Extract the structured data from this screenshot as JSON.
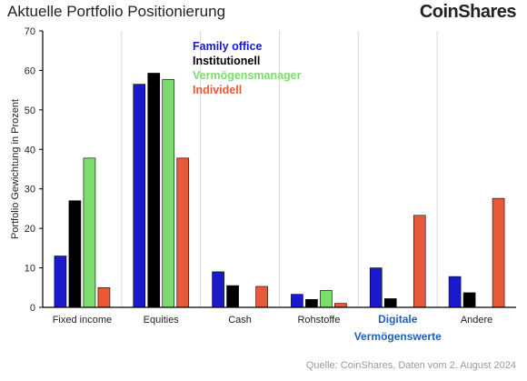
{
  "title": "Aktuelle Portfolio Positionierung",
  "brand": "CoinShares",
  "source": "Quelle: CoinShares, Daten vom 2. August 2024",
  "chart_data": {
    "type": "bar",
    "title": "Aktuelle Portfolio Positionierung",
    "ylabel": "Portfolio Gewichtung in Prozent",
    "xlabel": "",
    "ylim": [
      0,
      70
    ],
    "yticks": [
      0,
      10,
      20,
      30,
      40,
      50,
      60,
      70
    ],
    "grid": "vertical separators between categories",
    "legend_position": "top-center",
    "categories": [
      "Fixed income",
      "Equities",
      "Cash",
      "Rohstoffe",
      "Digitale Vermögenswerte",
      "Andere"
    ],
    "category_label_lines": [
      [
        "Fixed income"
      ],
      [
        "Equities"
      ],
      [
        "Cash"
      ],
      [
        "Rohstoffe"
      ],
      [
        "Digitale",
        "Vermögenswerte"
      ],
      [
        "Andere"
      ]
    ],
    "highlight_category": "Digitale Vermögenswerte",
    "highlight_color": "#1f5fbf",
    "series": [
      {
        "name": "Family office",
        "color": "#1a1acc",
        "values": [
          13,
          56.5,
          9,
          3.3,
          10,
          7.8
        ]
      },
      {
        "name": "Institutionell",
        "color": "#000000",
        "values": [
          27,
          59.3,
          5.5,
          2,
          2.2,
          3.7
        ]
      },
      {
        "name": "Vermögensmanager",
        "color": "#7ddc6e",
        "values": [
          37.8,
          57.7,
          0,
          4.3,
          0,
          0
        ]
      },
      {
        "name": "Individell",
        "color": "#e8593a",
        "values": [
          5,
          37.8,
          5.3,
          1,
          23.3,
          27.6
        ]
      }
    ]
  }
}
